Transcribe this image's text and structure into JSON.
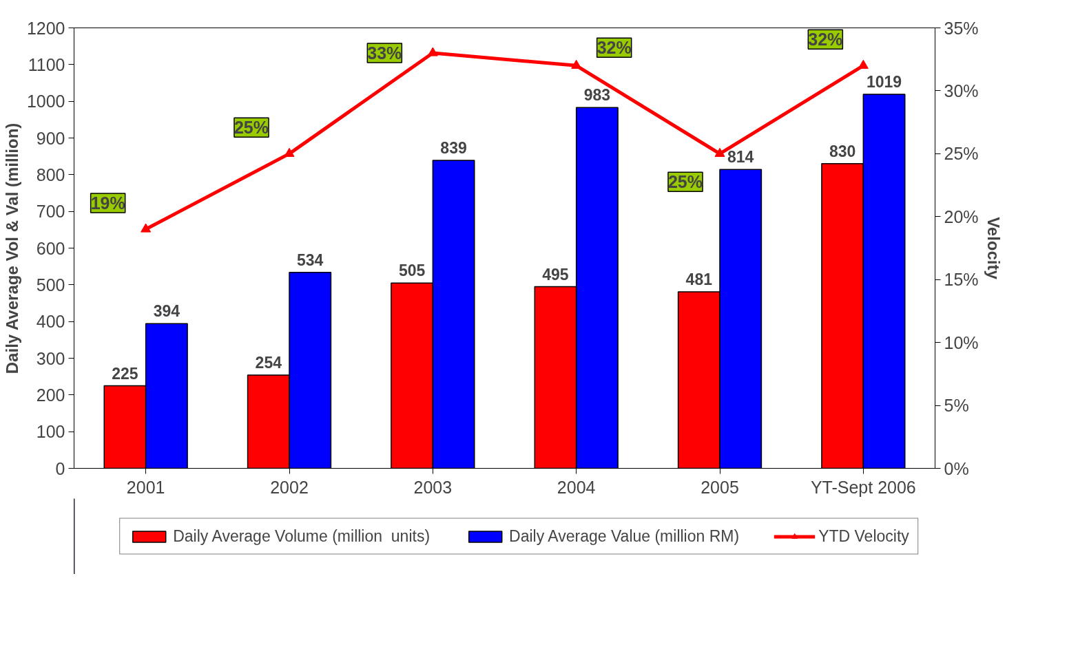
{
  "chart_data": {
    "type": "bar",
    "ylabel": "Daily Average Vol & Val (million)",
    "y2label": "Velocity",
    "categories": [
      "2001",
      "2002",
      "2003",
      "2004",
      "2005",
      "YT-Sept 2006"
    ],
    "series": [
      {
        "name": "Daily Average Volume (million  units)",
        "color": "#ff0000",
        "values": [
          225,
          254,
          505,
          495,
          481,
          830
        ]
      },
      {
        "name": "Daily Average Value (million RM)",
        "color": "#0000ff",
        "values": [
          394,
          534,
          839,
          983,
          814,
          1019
        ]
      },
      {
        "name": "YTD Velocity",
        "type": "line",
        "axis": "y2",
        "color": "#ff0000",
        "marker": "triangle",
        "values": [
          19,
          25,
          33,
          32,
          25,
          32
        ],
        "value_labels": [
          "19%",
          "25%",
          "33%",
          "32%",
          "25%",
          "32%"
        ]
      }
    ],
    "data_labels": true,
    "ylim": [
      0,
      1200
    ],
    "yticks": [
      0,
      100,
      200,
      300,
      400,
      500,
      600,
      700,
      800,
      900,
      1000,
      1100,
      1200
    ],
    "y2lim": [
      0,
      35
    ],
    "y2ticks": [
      {
        "value": 0,
        "label": "0%"
      },
      {
        "value": 5,
        "label": "5%"
      },
      {
        "value": 10,
        "label": "10%"
      },
      {
        "value": 15,
        "label": "15%"
      },
      {
        "value": 20,
        "label": "20%"
      },
      {
        "value": 25,
        "label": "25%"
      },
      {
        "value": 30,
        "label": "30%"
      },
      {
        "value": 35,
        "label": "35%"
      }
    ],
    "grid": false,
    "legend": "bottom"
  }
}
